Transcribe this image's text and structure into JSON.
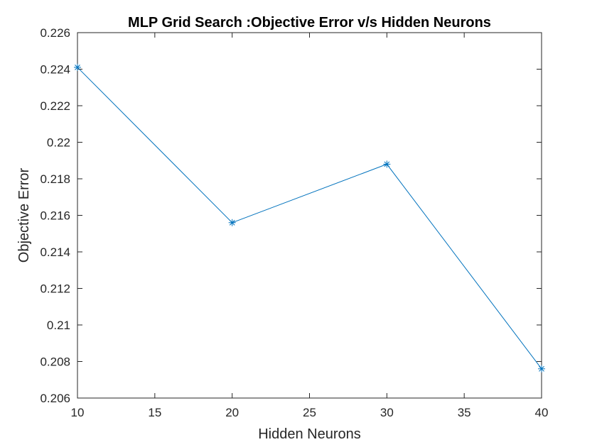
{
  "chart_data": {
    "type": "line",
    "title": "MLP Grid Search :Objective Error v/s Hidden Neurons",
    "xlabel": "Hidden Neurons",
    "ylabel": "Objective Error",
    "xlim": [
      10,
      40
    ],
    "ylim": [
      0.206,
      0.226
    ],
    "xticks": [
      10,
      15,
      20,
      25,
      30,
      35,
      40
    ],
    "yticks": [
      0.206,
      0.208,
      0.21,
      0.212,
      0.214,
      0.216,
      0.218,
      0.22,
      0.222,
      0.224,
      0.226
    ],
    "xtick_labels": [
      "10",
      "15",
      "20",
      "25",
      "30",
      "35",
      "40"
    ],
    "ytick_labels": [
      "0.206",
      "0.208",
      "0.21",
      "0.212",
      "0.214",
      "0.216",
      "0.218",
      "0.22",
      "0.222",
      "0.224",
      "0.226"
    ],
    "grid": false,
    "series": [
      {
        "x": [
          10,
          20,
          30,
          40
        ],
        "y": [
          0.2241,
          0.2156,
          0.2188,
          0.2076
        ],
        "color": "#0072BD",
        "marker": "asterisk"
      }
    ]
  }
}
